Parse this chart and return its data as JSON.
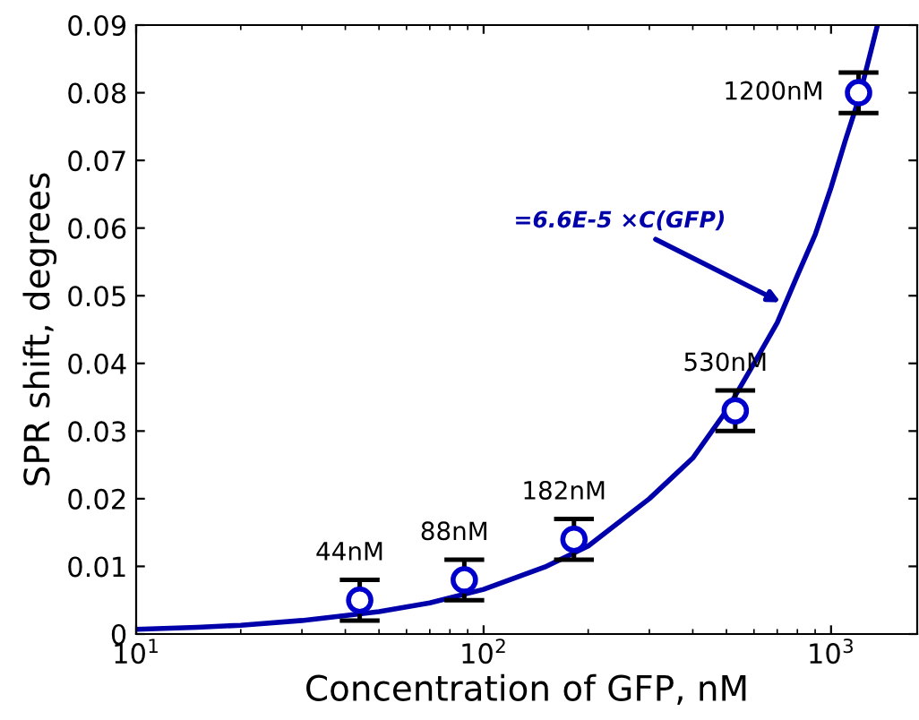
{
  "chart_data": {
    "type": "scatter",
    "xlabel": "Concentration of GFP, nM",
    "ylabel": "SPR shift, degrees",
    "log": "x",
    "xlim": [
      10,
      1770
    ],
    "xticks": [
      {
        "value": 10,
        "label": "10$^{1}$"
      },
      {
        "value": 100,
        "label": "10$^{2}$"
      },
      {
        "value": 1000,
        "label": "10$^{3}$"
      }
    ],
    "ylim": [
      0,
      0.09
    ],
    "yticks": [
      0,
      0.01,
      0.02,
      0.03,
      0.04,
      0.05,
      0.06,
      0.07,
      0.08,
      0.09
    ],
    "grid": false,
    "legend": false,
    "series": [
      {
        "marker": "circle",
        "color": "#0000cc",
        "x": [
          44,
          88,
          182,
          530,
          1200
        ],
        "values": [
          0.005,
          0.008,
          0.014,
          0.033,
          0.08
        ],
        "errors": [
          0.003,
          0.003,
          0.003,
          0.003,
          0.003
        ]
      },
      {
        "type": "line",
        "marker": "none",
        "line_style": "solid",
        "color": "#0000aa",
        "x": [
          10,
          15,
          20,
          30,
          50,
          70,
          100,
          150,
          200,
          300,
          400,
          500,
          600,
          700,
          800,
          900,
          1000,
          1100,
          1200,
          1300,
          1360
        ],
        "values": [
          0.0007,
          0.001,
          0.0013,
          0.002,
          0.0033,
          0.0046,
          0.0066,
          0.0099,
          0.013,
          0.02,
          0.026,
          0.033,
          0.04,
          0.046,
          0.053,
          0.059,
          0.066,
          0.073,
          0.079,
          0.086,
          0.09
        ]
      }
    ],
    "annotations": [
      {
        "text": "44nM",
        "x": 44,
        "y": 0.005
      },
      {
        "text": "88nM",
        "x": 88,
        "y": 0.008
      },
      {
        "text": "182nM",
        "x": 182,
        "y": 0.014
      },
      {
        "text": "530nM",
        "x": 530,
        "y": 0.033
      },
      {
        "text": "1200nM",
        "x": 1200,
        "y": 0.08
      },
      "=6.6E-5 ×C(GFP)"
    ]
  }
}
